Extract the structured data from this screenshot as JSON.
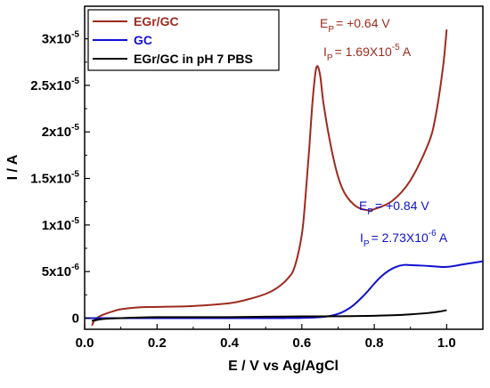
{
  "chart_data": {
    "type": "line",
    "xlabel": "E / V vs Ag/AgCl",
    "ylabel": "I / A",
    "xlim": [
      0.0,
      1.1
    ],
    "ylim": [
      -1.2e-06,
      3.35e-05
    ],
    "grid": false,
    "legend_position": "top-left",
    "x_ticks": [
      {
        "value": 0.0,
        "label": "0.0"
      },
      {
        "value": 0.2,
        "label": "0.2"
      },
      {
        "value": 0.4,
        "label": "0.4"
      },
      {
        "value": 0.6,
        "label": "0.6"
      },
      {
        "value": 0.8,
        "label": "0.8"
      },
      {
        "value": 1.0,
        "label": "1.0"
      }
    ],
    "y_ticks": [
      {
        "value": 0,
        "base": "0",
        "exp": ""
      },
      {
        "value": 5e-06,
        "base": "5x10",
        "exp": "-6"
      },
      {
        "value": 1e-05,
        "base": "1x10",
        "exp": "-5"
      },
      {
        "value": 1.5e-05,
        "base": "1.5x10",
        "exp": "-5"
      },
      {
        "value": 2e-05,
        "base": "2x10",
        "exp": "-5"
      },
      {
        "value": 2.5e-05,
        "base": "2.5x10",
        "exp": "-5"
      },
      {
        "value": 3e-05,
        "base": "3x10",
        "exp": "-5"
      }
    ],
    "series": [
      {
        "name": "EGr/GC",
        "color": "#9e2a1e",
        "x": [
          0.02,
          0.03,
          0.05,
          0.08,
          0.1,
          0.15,
          0.2,
          0.3,
          0.4,
          0.45,
          0.5,
          0.53,
          0.56,
          0.58,
          0.6,
          0.61,
          0.62,
          0.63,
          0.64,
          0.65,
          0.66,
          0.68,
          0.7,
          0.72,
          0.75,
          0.78,
          0.8,
          0.85,
          0.9,
          0.95,
          0.97,
          0.99,
          1.0
        ],
        "y": [
          -8e-07,
          -1e-07,
          3.5e-07,
          7.5e-07,
          9.5e-07,
          1.15e-06,
          1.2e-06,
          1.3e-06,
          1.6e-06,
          2e-06,
          2.6e-06,
          3.2e-06,
          4.2e-06,
          5.5e-06,
          9e-06,
          1.3e-05,
          1.8e-05,
          2.35e-05,
          2.69e-05,
          2.62e-05,
          2.3e-05,
          1.85e-05,
          1.52e-05,
          1.33e-05,
          1.2e-05,
          1.16e-05,
          1.17e-05,
          1.26e-05,
          1.48e-05,
          1.88e-05,
          2.18e-05,
          2.7e-05,
          3.1e-05
        ]
      },
      {
        "name": "GC",
        "color": "#1010d0",
        "x": [
          0.0,
          0.1,
          0.2,
          0.3,
          0.4,
          0.5,
          0.55,
          0.6,
          0.65,
          0.68,
          0.7,
          0.72,
          0.74,
          0.76,
          0.78,
          0.8,
          0.82,
          0.84,
          0.86,
          0.88,
          0.9,
          0.95,
          1.0,
          1.05,
          1.1
        ],
        "y": [
          0,
          0,
          0,
          0,
          0,
          0,
          0,
          2e-08,
          1e-07,
          2.5e-07,
          4.5e-07,
          8e-07,
          1.3e-06,
          2e-06,
          2.8e-06,
          3.7e-06,
          4.5e-06,
          5.1e-06,
          5.5e-06,
          5.7e-06,
          5.7e-06,
          5.6e-06,
          5.5e-06,
          5.8e-06,
          6.1e-06
        ]
      },
      {
        "name": "EGr/GC in pH 7 PBS",
        "color": "#000000",
        "x": [
          0.02,
          0.05,
          0.1,
          0.2,
          0.3,
          0.4,
          0.5,
          0.6,
          0.7,
          0.8,
          0.85,
          0.9,
          0.95,
          0.98,
          1.0
        ],
        "y": [
          -3e-07,
          -1e-07,
          0,
          1e-07,
          1e-07,
          1e-07,
          1.5e-07,
          1.8e-07,
          2e-07,
          2.5e-07,
          3e-07,
          4e-07,
          5.5e-07,
          7e-07,
          8.5e-07
        ]
      }
    ],
    "annotations": {
      "egr": {
        "ep_label": "E",
        "ep_sub": "P",
        "ep_value": "= +0.64 V",
        "ip_label": "I",
        "ip_sub": "P",
        "ip_value": "= 1.69X10",
        "ip_exp": "-5",
        "ip_unit": " A",
        "color": "#9e2a1e"
      },
      "gc": {
        "ep_label": "E",
        "ep_sub": "P",
        "ep_value": "= +0.84 V",
        "ip_label": "I",
        "ip_sub": "P",
        "ip_value": "= 2.73X10",
        "ip_exp": "-6",
        "ip_unit": " A",
        "color": "#1010d0"
      }
    }
  }
}
